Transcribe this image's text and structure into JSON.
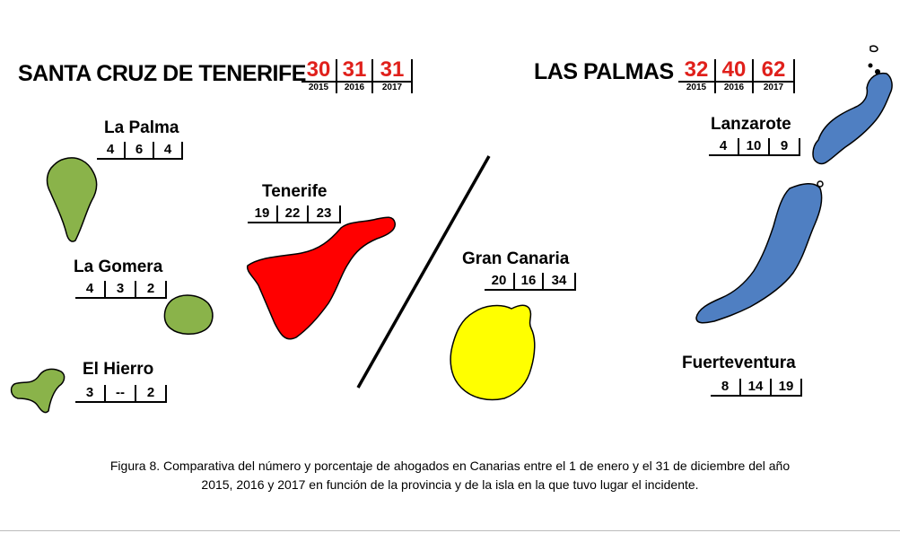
{
  "provinces": {
    "scdt": {
      "name": "SANTA CRUZ DE TENERIFE",
      "totals": [
        "30",
        "31",
        "31"
      ]
    },
    "lp": {
      "name": "LAS PALMAS",
      "totals": [
        "32",
        "40",
        "62"
      ]
    }
  },
  "years": [
    "2015",
    "2016",
    "2017"
  ],
  "islands": {
    "la_palma": {
      "name": "La Palma",
      "values": [
        "4",
        "6",
        "4"
      ]
    },
    "la_gomera": {
      "name": "La Gomera",
      "values": [
        "4",
        "3",
        "2"
      ]
    },
    "el_hierro": {
      "name": "El Hierro",
      "values": [
        "3",
        "--",
        "2"
      ]
    },
    "tenerife": {
      "name": "Tenerife",
      "values": [
        "19",
        "22",
        "23"
      ]
    },
    "gran_canaria": {
      "name": "Gran Canaria",
      "values": [
        "20",
        "16",
        "34"
      ]
    },
    "lanzarote": {
      "name": "Lanzarote",
      "values": [
        "4",
        "10",
        "9"
      ]
    },
    "fuerteventura": {
      "name": "Fuerteventura",
      "values": [
        "8",
        "14",
        "19"
      ]
    }
  },
  "colors": {
    "western_green": "#8ab34a",
    "tenerife_red": "#ff0000",
    "gran_canaria_yellow": "#ffff00",
    "eastern_blue": "#4f7fc2",
    "total_red": "#e0201b"
  },
  "caption_lines": [
    "Figura 8. Comparativa del número y porcentaje de ahogados en Canarias entre el 1 de enero y el 31 de diciembre del año",
    "2015, 2016 y 2017 en función de la provincia y de la isla en la que tuvo lugar el incidente."
  ]
}
